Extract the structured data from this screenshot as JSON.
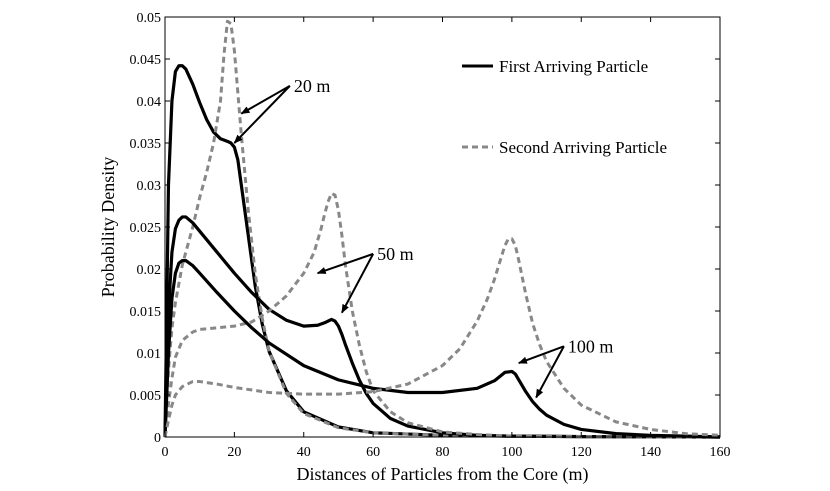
{
  "chart_data": {
    "type": "line",
    "title": "",
    "xlabel": "Distances of Particles from the Core (m)",
    "ylabel": "Probability Density",
    "xlim": [
      0,
      160
    ],
    "ylim": [
      0,
      0.05
    ],
    "xticks": [
      0,
      20,
      40,
      60,
      80,
      100,
      120,
      140,
      160
    ],
    "xtick_labels": [
      "0",
      "20",
      "40",
      "60",
      "80",
      "100",
      "120",
      "140",
      "160"
    ],
    "yticks": [
      0,
      0.005,
      0.01,
      0.015,
      0.02,
      0.025,
      0.03,
      0.035,
      0.04,
      0.045,
      0.05
    ],
    "ytick_labels": [
      "0",
      "0.005",
      "0.01",
      "0.015",
      "0.02",
      "0.025",
      "0.03",
      "0.035",
      "0.04",
      "0.045",
      "0.05"
    ],
    "grid": false,
    "legend_position": "top-right",
    "legend": [
      "First Arriving Particle",
      "Second Arriving Particle"
    ],
    "series": [
      {
        "name": "First Arriving Particle",
        "group": "20 m",
        "style": "solid",
        "color": "#000000",
        "x": [
          0,
          1,
          2,
          3,
          4,
          5,
          6,
          8,
          10,
          12,
          14,
          16,
          18,
          19,
          20,
          21,
          22,
          24,
          26,
          28,
          30,
          35,
          40,
          50,
          60,
          80,
          100,
          120,
          140,
          160
        ],
        "y": [
          0.0,
          0.03,
          0.04,
          0.0435,
          0.0442,
          0.0442,
          0.0438,
          0.042,
          0.0398,
          0.0378,
          0.0363,
          0.0355,
          0.0352,
          0.035,
          0.0345,
          0.033,
          0.03,
          0.024,
          0.018,
          0.0135,
          0.0102,
          0.0055,
          0.003,
          0.0012,
          0.0005,
          0.0002,
          0.0001,
          5e-05,
          2e-05,
          0.0
        ]
      },
      {
        "name": "Second Arriving Particle",
        "group": "20 m",
        "style": "dashed",
        "color": "#888888",
        "x": [
          0,
          1,
          2,
          3,
          5,
          8,
          10,
          12,
          14,
          16,
          17,
          18,
          19,
          20,
          21,
          22,
          24,
          26,
          28,
          30,
          35,
          40,
          50,
          60,
          80,
          100,
          120,
          140,
          160
        ],
        "y": [
          0.0,
          0.008,
          0.013,
          0.016,
          0.0205,
          0.025,
          0.0285,
          0.0315,
          0.035,
          0.04,
          0.0455,
          0.0495,
          0.0492,
          0.046,
          0.041,
          0.036,
          0.027,
          0.0195,
          0.0142,
          0.0102,
          0.0052,
          0.0028,
          0.0011,
          0.0005,
          0.0002,
          0.0001,
          5e-05,
          2e-05,
          0.0
        ]
      },
      {
        "name": "First Arriving Particle",
        "group": "50 m",
        "style": "solid",
        "color": "#000000",
        "x": [
          0,
          1,
          2,
          3,
          4,
          5,
          6,
          8,
          10,
          15,
          20,
          25,
          30,
          35,
          40,
          44,
          46,
          48,
          49,
          50,
          51,
          52,
          54,
          56,
          58,
          60,
          65,
          70,
          80,
          90,
          100,
          120,
          140,
          160
        ],
        "y": [
          0.0,
          0.015,
          0.022,
          0.0248,
          0.0258,
          0.0262,
          0.0262,
          0.0255,
          0.0245,
          0.022,
          0.0195,
          0.0172,
          0.0152,
          0.0139,
          0.0132,
          0.0133,
          0.0136,
          0.014,
          0.0138,
          0.0132,
          0.0122,
          0.011,
          0.0088,
          0.0068,
          0.0052,
          0.004,
          0.0022,
          0.0013,
          0.0005,
          0.0002,
          0.0001,
          4e-05,
          2e-05,
          0.0
        ]
      },
      {
        "name": "Second Arriving Particle",
        "group": "50 m",
        "style": "dashed",
        "color": "#888888",
        "x": [
          0,
          1,
          2,
          3,
          5,
          8,
          10,
          15,
          20,
          25,
          30,
          35,
          40,
          43,
          45,
          46,
          47,
          48,
          49,
          50,
          51,
          52,
          54,
          56,
          58,
          60,
          65,
          70,
          80,
          90,
          100,
          120,
          140,
          160
        ],
        "y": [
          0.0,
          0.004,
          0.007,
          0.0095,
          0.0115,
          0.0125,
          0.0128,
          0.013,
          0.0132,
          0.0137,
          0.015,
          0.0168,
          0.0195,
          0.022,
          0.0248,
          0.0265,
          0.028,
          0.029,
          0.0288,
          0.027,
          0.024,
          0.0205,
          0.015,
          0.011,
          0.0078,
          0.0055,
          0.003,
          0.0017,
          0.0006,
          0.0003,
          0.0001,
          4e-05,
          2e-05,
          0.0
        ]
      },
      {
        "name": "First Arriving Particle",
        "group": "100 m",
        "style": "solid",
        "color": "#000000",
        "x": [
          0,
          1,
          2,
          3,
          4,
          5,
          6,
          8,
          10,
          15,
          20,
          25,
          30,
          40,
          50,
          60,
          70,
          80,
          90,
          95,
          98,
          100,
          101,
          102,
          104,
          106,
          108,
          110,
          115,
          120,
          130,
          140,
          150,
          160
        ],
        "y": [
          0.0,
          0.01,
          0.0165,
          0.0195,
          0.0207,
          0.021,
          0.021,
          0.0204,
          0.0195,
          0.0172,
          0.015,
          0.013,
          0.0112,
          0.0085,
          0.0068,
          0.0058,
          0.0053,
          0.0053,
          0.0058,
          0.0067,
          0.0077,
          0.0078,
          0.0075,
          0.0068,
          0.0054,
          0.0042,
          0.0033,
          0.0026,
          0.0015,
          0.0009,
          0.0004,
          0.0002,
          0.0001,
          0.0
        ]
      },
      {
        "name": "Second Arriving Particle",
        "group": "100 m",
        "style": "dashed",
        "color": "#888888",
        "x": [
          0,
          1,
          2,
          3,
          5,
          8,
          10,
          15,
          20,
          30,
          40,
          50,
          60,
          70,
          80,
          85,
          90,
          93,
          95,
          97,
          98,
          99,
          100,
          101,
          102,
          104,
          106,
          108,
          110,
          115,
          120,
          130,
          140,
          150,
          160
        ],
        "y": [
          0.0,
          0.002,
          0.0038,
          0.005,
          0.006,
          0.0066,
          0.0066,
          0.0063,
          0.0059,
          0.0053,
          0.0051,
          0.0051,
          0.0054,
          0.0063,
          0.0085,
          0.0105,
          0.0138,
          0.0165,
          0.0188,
          0.0215,
          0.0228,
          0.0236,
          0.0236,
          0.0228,
          0.021,
          0.017,
          0.0135,
          0.011,
          0.009,
          0.0058,
          0.0038,
          0.0018,
          0.0009,
          0.0004,
          0.0002
        ]
      }
    ],
    "annotations": [
      {
        "text": "20 m",
        "targets": [
          [
            22,
            0.0385
          ],
          [
            20,
            0.035
          ]
        ],
        "anchor": [
          36,
          0.0418
        ]
      },
      {
        "text": "50 m",
        "targets": [
          [
            44,
            0.0195
          ],
          [
            51,
            0.0148
          ]
        ],
        "anchor": [
          60,
          0.0218
        ]
      },
      {
        "text": "100 m",
        "targets": [
          [
            102,
            0.0088
          ],
          [
            107,
            0.0047
          ]
        ],
        "anchor": [
          115,
          0.0108
        ]
      }
    ]
  }
}
